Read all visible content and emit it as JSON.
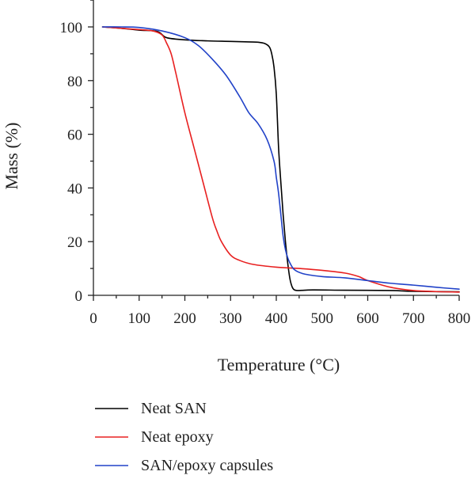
{
  "chart_data": {
    "type": "line",
    "title": "",
    "xlabel": "Temperature (°C)",
    "ylabel": "Mass (%)",
    "xlim": [
      0,
      800
    ],
    "ylim": [
      0,
      110
    ],
    "xticks": [
      "0",
      "100",
      "200",
      "300",
      "400",
      "500",
      "600",
      "700",
      "800"
    ],
    "yticks": [
      "0",
      "20",
      "40",
      "60",
      "80",
      "100"
    ],
    "grid": false,
    "legend_position": "bottom",
    "series": [
      {
        "name": "Neat SAN",
        "color": "#000000",
        "x": [
          20,
          60,
          100,
          140,
          160,
          200,
          250,
          300,
          340,
          360,
          375,
          385,
          390,
          395,
          400,
          405,
          410,
          415,
          420,
          425,
          430,
          435,
          440,
          450,
          480,
          550,
          650,
          700,
          800
        ],
        "y": [
          100,
          99.5,
          98.8,
          98.3,
          96,
          95.2,
          94.8,
          94.6,
          94.4,
          94.3,
          93.8,
          92.5,
          90,
          85,
          75,
          55,
          42,
          30,
          20,
          12,
          6,
          3,
          2,
          1.8,
          2,
          1.9,
          1.8,
          1.5,
          1.3
        ]
      },
      {
        "name": "Neat epoxy",
        "color": "#e82020",
        "x": [
          20,
          60,
          100,
          130,
          150,
          160,
          170,
          180,
          200,
          220,
          240,
          260,
          270,
          280,
          300,
          320,
          350,
          400,
          450,
          500,
          550,
          580,
          600,
          650,
          700,
          750,
          800
        ],
        "y": [
          100,
          99.5,
          99,
          98.5,
          97,
          94,
          90,
          83,
          68,
          55,
          42,
          29,
          24,
          20,
          15,
          13,
          11.5,
          10.5,
          10,
          9.3,
          8.3,
          7,
          5.5,
          3,
          1.8,
          1.4,
          1.2
        ]
      },
      {
        "name": "SAN/epoxy capsules",
        "color": "#2142c8",
        "x": [
          20,
          60,
          100,
          150,
          200,
          230,
          260,
          290,
          320,
          340,
          360,
          380,
          395,
          400,
          405,
          410,
          415,
          420,
          425,
          430,
          440,
          460,
          500,
          550,
          600,
          650,
          700,
          750,
          800
        ],
        "y": [
          100,
          100,
          99.8,
          98.5,
          96,
          93,
          88,
          82,
          74,
          68,
          64,
          58,
          50,
          44,
          38,
          30,
          22,
          17,
          14,
          12,
          9.5,
          8,
          7,
          6.5,
          5.5,
          4.5,
          3.8,
          3,
          2.3
        ]
      }
    ]
  }
}
